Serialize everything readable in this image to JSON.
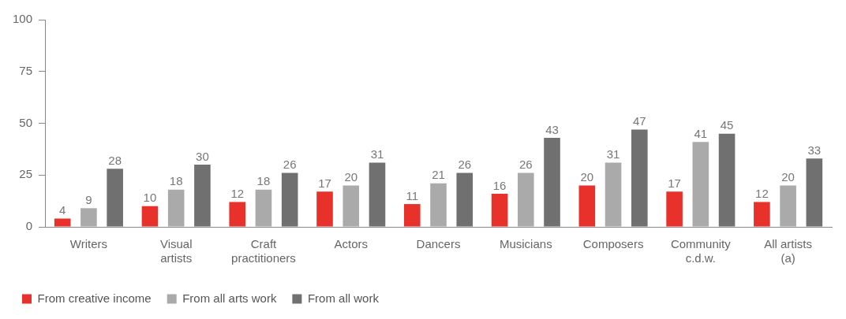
{
  "chart_data": {
    "type": "bar",
    "categories": [
      "Writers",
      "Visual artists",
      "Craft practitioners",
      "Actors",
      "Dancers",
      "Musicians",
      "Composers",
      "Community c.d.w.",
      "All artists (a)"
    ],
    "series": [
      {
        "name": "From creative income",
        "color": "#e8312a",
        "values": [
          4,
          10,
          12,
          17,
          11,
          16,
          20,
          17,
          12
        ]
      },
      {
        "name": "From all arts work",
        "color": "#aaaaaa",
        "values": [
          9,
          18,
          18,
          20,
          21,
          26,
          31,
          41,
          20
        ]
      },
      {
        "name": "From all work",
        "color": "#707070",
        "values": [
          28,
          30,
          26,
          31,
          26,
          43,
          47,
          45,
          33
        ]
      }
    ],
    "ylim": [
      0,
      100
    ],
    "yticks": [
      0,
      25,
      50,
      75,
      100
    ],
    "grid": false,
    "legend": "bottom left",
    "data_labels": true
  }
}
